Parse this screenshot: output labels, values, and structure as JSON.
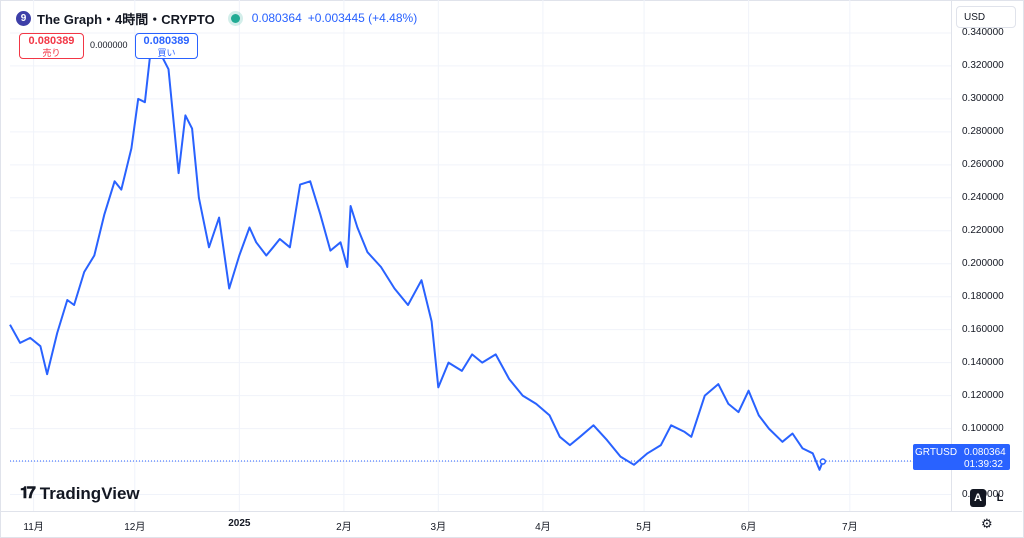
{
  "header": {
    "logo_glyph": "9",
    "symbol_title": "The Graph・4時間・CRYPTO",
    "price": "0.080364",
    "change": "+0.003445 (+4.48%)"
  },
  "trade": {
    "sell_price": "0.080389",
    "sell_label": "売り",
    "spread": "0.000000",
    "buy_price": "0.080389",
    "buy_label": "買い"
  },
  "currency": "USD",
  "price_tag": {
    "symbol": "GRTUSD",
    "price": "0.080364",
    "countdown": "01:39:32"
  },
  "watermark": "TradingView",
  "scale_buttons": {
    "auto": "A",
    "log": "L"
  },
  "colors": {
    "line": "#2962ff",
    "sell": "#f23645",
    "buy": "#2962ff",
    "live": "#22ab94"
  },
  "chart_data": {
    "type": "line",
    "series": [
      {
        "x": [
          "2024-10-25",
          "2024-10-28",
          "2024-10-31",
          "2024-11-03",
          "2024-11-05",
          "2024-11-08",
          "2024-11-11",
          "2024-11-13",
          "2024-11-16",
          "2024-11-19",
          "2024-11-22",
          "2024-11-25",
          "2024-11-27",
          "2024-11-30",
          "2024-12-02",
          "2024-12-04",
          "2024-12-06",
          "2024-12-08",
          "2024-12-11",
          "2024-12-14",
          "2024-12-16",
          "2024-12-18",
          "2024-12-20",
          "2024-12-23",
          "2024-12-26",
          "2024-12-29",
          "2025-01-01",
          "2025-01-04",
          "2025-01-06",
          "2025-01-09",
          "2025-01-11",
          "2025-01-13",
          "2025-01-16",
          "2025-01-19",
          "2025-01-22",
          "2025-01-25",
          "2025-01-28",
          "2025-01-31",
          "2025-02-02",
          "2025-02-03",
          "2025-02-05",
          "2025-02-08",
          "2025-02-12",
          "2025-02-16",
          "2025-02-20",
          "2025-02-24",
          "2025-02-27",
          "2025-03-01",
          "2025-03-04",
          "2025-03-08",
          "2025-03-11",
          "2025-03-14",
          "2025-03-18",
          "2025-03-22",
          "2025-03-26",
          "2025-03-30",
          "2025-04-03",
          "2025-04-06",
          "2025-04-09",
          "2025-04-12",
          "2025-04-16",
          "2025-04-20",
          "2025-04-24",
          "2025-04-28",
          "2025-05-02",
          "2025-05-06",
          "2025-05-09",
          "2025-05-13",
          "2025-05-15",
          "2025-05-19",
          "2025-05-23",
          "2025-05-26",
          "2025-05-29",
          "2025-06-01",
          "2025-06-04",
          "2025-06-07",
          "2025-06-11",
          "2025-06-14",
          "2025-06-17",
          "2025-06-20",
          "2025-06-22",
          "2025-06-23"
        ],
        "y": [
          0.163,
          0.152,
          0.155,
          0.15,
          0.133,
          0.158,
          0.178,
          0.175,
          0.195,
          0.205,
          0.23,
          0.25,
          0.245,
          0.27,
          0.3,
          0.298,
          0.335,
          0.33,
          0.318,
          0.255,
          0.29,
          0.282,
          0.24,
          0.21,
          0.228,
          0.185,
          0.205,
          0.222,
          0.213,
          0.205,
          0.21,
          0.215,
          0.21,
          0.248,
          0.25,
          0.23,
          0.208,
          0.213,
          0.198,
          0.235,
          0.222,
          0.207,
          0.198,
          0.185,
          0.175,
          0.19,
          0.165,
          0.125,
          0.14,
          0.135,
          0.145,
          0.14,
          0.145,
          0.13,
          0.12,
          0.115,
          0.108,
          0.095,
          0.09,
          0.095,
          0.102,
          0.093,
          0.083,
          0.078,
          0.085,
          0.09,
          0.102,
          0.098,
          0.095,
          0.12,
          0.127,
          0.115,
          0.11,
          0.123,
          0.108,
          0.1,
          0.092,
          0.097,
          0.088,
          0.085,
          0.075,
          0.08
        ],
        "last_price": 0.080364
      }
    ],
    "y_ticks": [
      "0.340000",
      "0.320000",
      "0.300000",
      "0.280000",
      "0.260000",
      "0.240000",
      "0.220000",
      "0.200000",
      "0.180000",
      "0.160000",
      "0.140000",
      "0.120000",
      "0.100000",
      "0.080000",
      "0.060000"
    ],
    "x_ticks": [
      {
        "label": "11月",
        "date": "2024-11-01"
      },
      {
        "label": "12月",
        "date": "2024-12-01"
      },
      {
        "label": "2025",
        "date": "2025-01-01",
        "bold": true
      },
      {
        "label": "2月",
        "date": "2025-02-01"
      },
      {
        "label": "3月",
        "date": "2025-03-01"
      },
      {
        "label": "4月",
        "date": "2025-04-01"
      },
      {
        "label": "5月",
        "date": "2025-05-01"
      },
      {
        "label": "6月",
        "date": "2025-06-01"
      },
      {
        "label": "7月",
        "date": "2025-07-01"
      }
    ],
    "xlim": [
      "2024-10-25",
      "2025-07-31"
    ],
    "ylim": [
      0.05,
      0.36
    ],
    "grid": true
  }
}
